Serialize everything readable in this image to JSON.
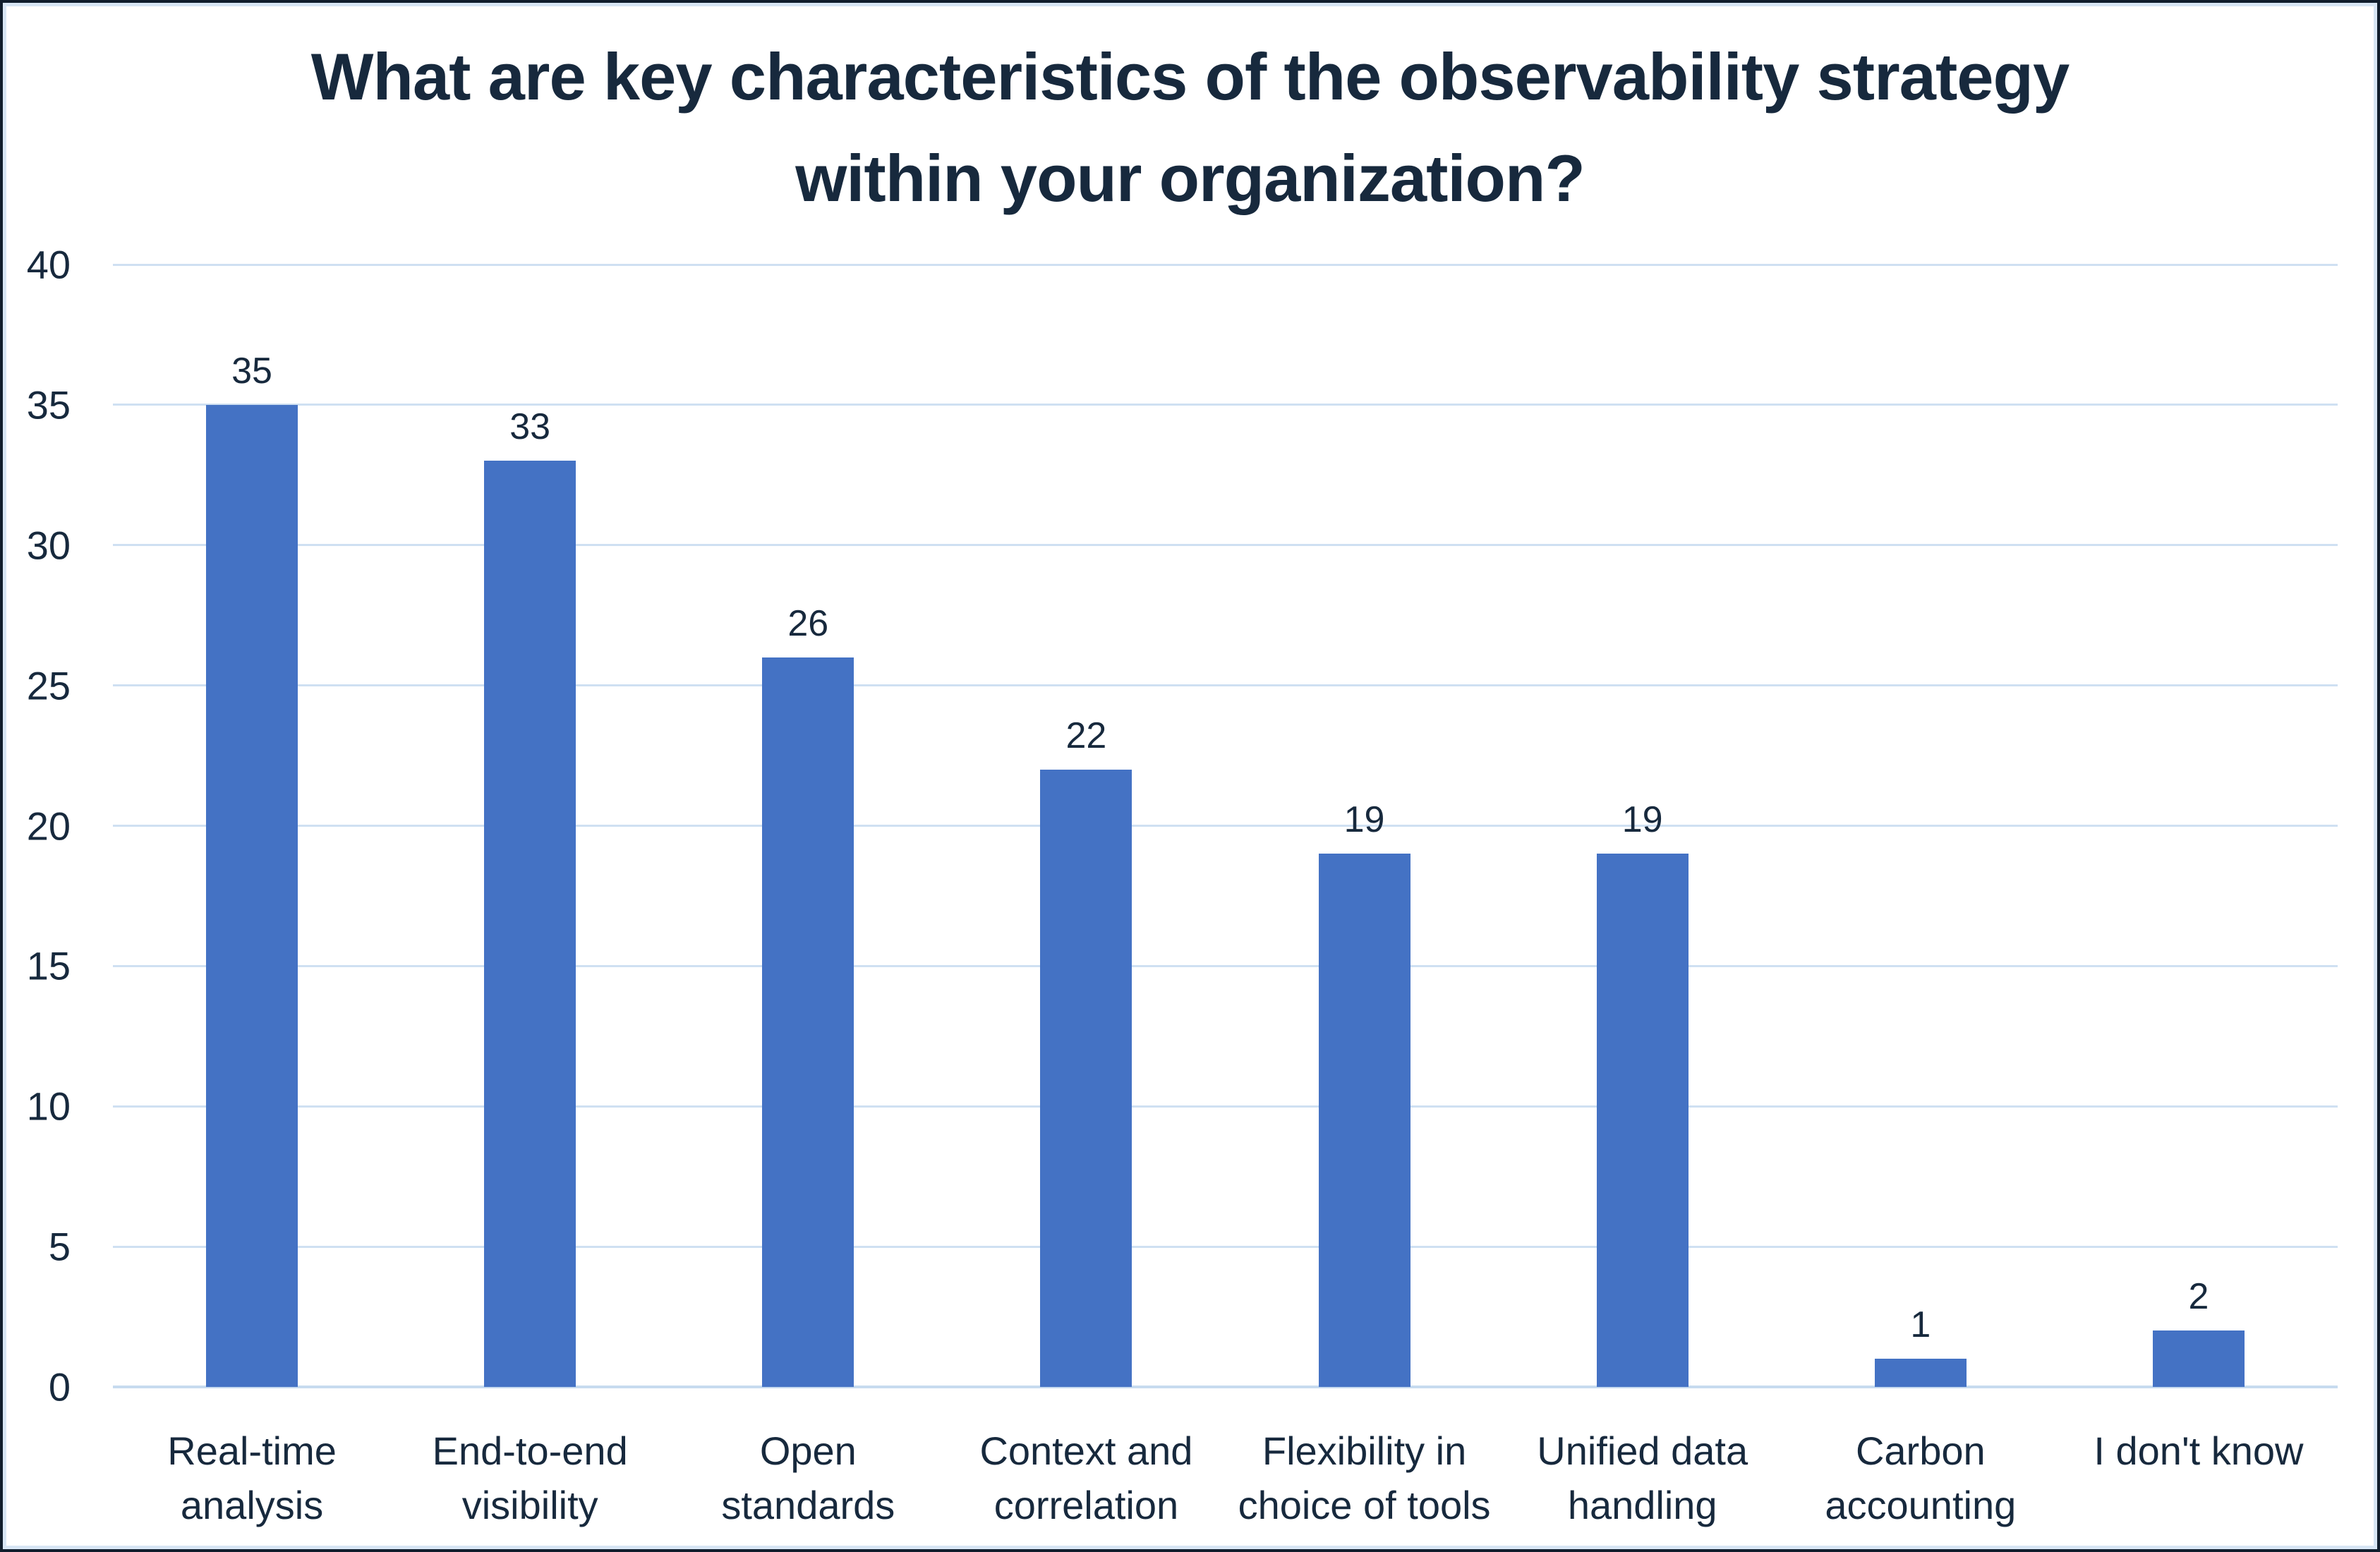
{
  "title": {
    "lines": [
      "What are key characteristics of the observability strategy",
      "within your organization?"
    ]
  },
  "chart_data": {
    "type": "bar",
    "title": "What are key characteristics of the observability strategy within your organization?",
    "categories": [
      "Real-time analysis",
      "End-to-end visibility",
      "Open standards",
      "Context and correlation",
      "Flexibility in choice of tools",
      "Unified data handling",
      "Carbon accounting",
      "I don't know"
    ],
    "category_label_lines": [
      [
        "Real-time",
        "analysis"
      ],
      [
        "End-to-end",
        "visibility"
      ],
      [
        "Open",
        "standards"
      ],
      [
        "Context and",
        "correlation"
      ],
      [
        "Flexibility in",
        "choice of tools"
      ],
      [
        "Unified data",
        "handling"
      ],
      [
        "Carbon",
        "accounting"
      ],
      [
        "I don't know"
      ]
    ],
    "values": [
      35,
      33,
      26,
      22,
      19,
      19,
      1,
      2
    ],
    "data_labels": [
      "35",
      "33",
      "26",
      "22",
      "19",
      "19",
      "1",
      "2"
    ],
    "y_ticks": [
      "0",
      "5",
      "10",
      "15",
      "20",
      "25",
      "30",
      "35",
      "40"
    ],
    "ylim": [
      0,
      40
    ],
    "xlabel": "",
    "ylabel": "",
    "grid": true,
    "legend": false
  },
  "style": {
    "bar_color": "#4472C4",
    "grid_color": "#CFE0F2",
    "baseline_color": "#C7DBEF",
    "text_color": "#17293D",
    "frame_outer_color": "#101D2C",
    "frame_inner_color": "#D7E5F4",
    "background_color": "#FFFFFF"
  }
}
